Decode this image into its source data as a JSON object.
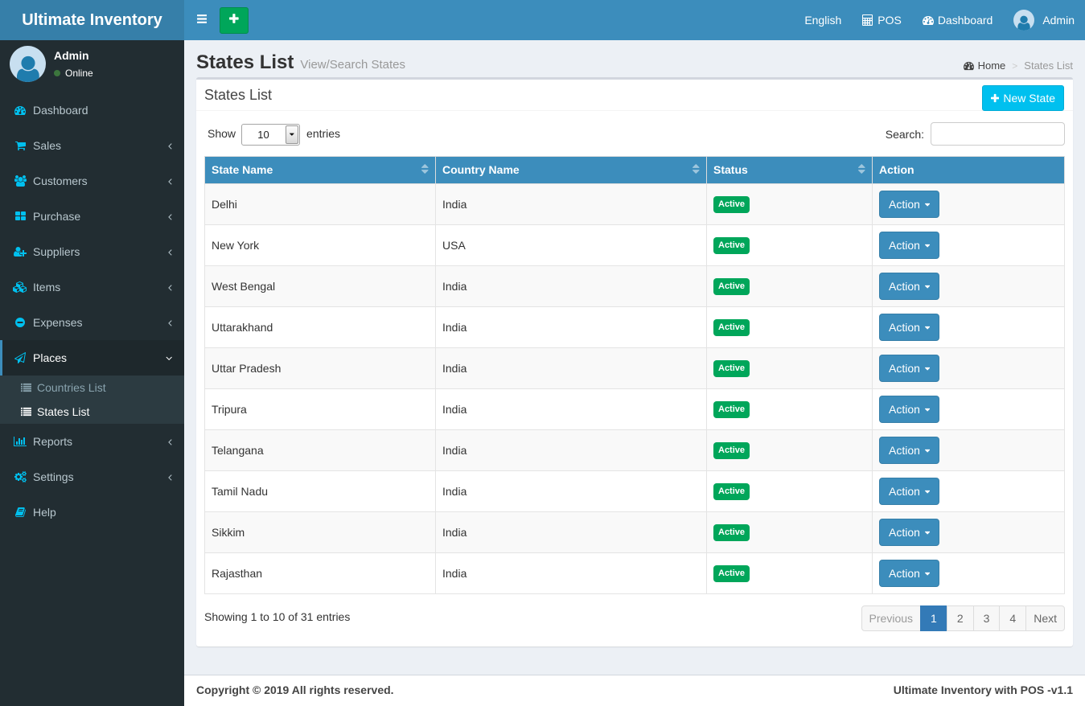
{
  "colors": {
    "navbar": "#3c8dbc",
    "logo-bg": "#367fa9",
    "sidebar": "#222d32",
    "submenu": "#2c3b41",
    "active-item": "#1e282c",
    "icon-accent": "#00c0ef",
    "content-bg": "#ecf0f5",
    "table-header": "#3c8dbc",
    "success": "#00a65a",
    "info": "#00c0ef",
    "pagination-active": "#337ab7",
    "box-border": "#d2d6de"
  },
  "navbar": {
    "brand": "Ultimate Inventory",
    "language": "English",
    "pos": "POS",
    "dashboard": "Dashboard",
    "user": "Admin"
  },
  "sidebar": {
    "user": {
      "name": "Admin",
      "status": "Online"
    },
    "menu": [
      {
        "label": "Dashboard",
        "icon": "dashboard-icon",
        "arrow": ""
      },
      {
        "label": "Sales",
        "icon": "cart-icon",
        "arrow": "angle-left-icon"
      },
      {
        "label": "Customers",
        "icon": "users-icon",
        "arrow": "angle-left-icon"
      },
      {
        "label": "Purchase",
        "icon": "grid-icon",
        "arrow": "angle-left-icon"
      },
      {
        "label": "Suppliers",
        "icon": "user-plus-icon",
        "arrow": "angle-left-icon"
      },
      {
        "label": "Items",
        "icon": "cubes-icon",
        "arrow": "angle-left-icon"
      },
      {
        "label": "Expenses",
        "icon": "minus-circle-icon",
        "arrow": "angle-left-icon"
      },
      {
        "label": "Places",
        "icon": "paper-plane-icon",
        "arrow": "angle-down-icon",
        "active": true,
        "submenu": [
          {
            "label": "Countries List",
            "icon": "list-icon",
            "active": false
          },
          {
            "label": "States List",
            "icon": "list-icon",
            "active": true
          }
        ]
      },
      {
        "label": "Reports",
        "icon": "bar-chart-icon",
        "arrow": "angle-left-icon"
      },
      {
        "label": "Settings",
        "icon": "cogs-icon",
        "arrow": "angle-left-icon"
      },
      {
        "label": "Help",
        "icon": "book-icon",
        "arrow": ""
      }
    ]
  },
  "page": {
    "title": "States List",
    "subtitle": "View/Search States",
    "breadcrumb": {
      "home": "Home",
      "separator": ">",
      "current": "States List"
    }
  },
  "panel": {
    "title": "States List",
    "new_button": "New State"
  },
  "controls": {
    "show_label": "Show",
    "page_length": "10",
    "entries_label": "entries",
    "search_label": "Search:",
    "search_value": ""
  },
  "table": {
    "columns": [
      {
        "label": "State Name",
        "sortable": true
      },
      {
        "label": "Country Name",
        "sortable": true
      },
      {
        "label": "Status",
        "sortable": true
      },
      {
        "label": "Action",
        "sortable": false
      }
    ],
    "rows": [
      {
        "state": "Delhi",
        "country": "India",
        "status": "Active",
        "action": "Action"
      },
      {
        "state": "New York",
        "country": "USA",
        "status": "Active",
        "action": "Action"
      },
      {
        "state": "West Bengal",
        "country": "India",
        "status": "Active",
        "action": "Action"
      },
      {
        "state": "Uttarakhand",
        "country": "India",
        "status": "Active",
        "action": "Action"
      },
      {
        "state": "Uttar Pradesh",
        "country": "India",
        "status": "Active",
        "action": "Action"
      },
      {
        "state": "Tripura",
        "country": "India",
        "status": "Active",
        "action": "Action"
      },
      {
        "state": "Telangana",
        "country": "India",
        "status": "Active",
        "action": "Action"
      },
      {
        "state": "Tamil Nadu",
        "country": "India",
        "status": "Active",
        "action": "Action"
      },
      {
        "state": "Sikkim",
        "country": "India",
        "status": "Active",
        "action": "Action"
      },
      {
        "state": "Rajasthan",
        "country": "India",
        "status": "Active",
        "action": "Action"
      }
    ]
  },
  "summary": {
    "info": "Showing 1 to 10 of 31 entries"
  },
  "pagination": {
    "previous": "Previous",
    "pages": [
      {
        "label": "1",
        "active": true
      },
      {
        "label": "2",
        "active": false
      },
      {
        "label": "3",
        "active": false
      },
      {
        "label": "4",
        "active": false
      }
    ],
    "next": "Next"
  },
  "footer": {
    "copyright": "Copyright © 2019 All rights reserved.",
    "version": "Ultimate Inventory with POS -v1.1"
  }
}
